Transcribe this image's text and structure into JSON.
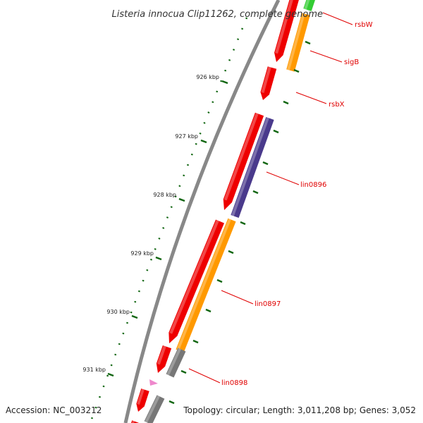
{
  "title": "Listeria innocua Clip11262, complete genome",
  "accession": "Accession: NC_003212",
  "topology": "Topology: circular; Length: 3,011,208 bp; Genes: 3,052",
  "scale_labels": [
    "926 kbp",
    "927 kbp",
    "928 kbp",
    "929 kbp",
    "930 kbp",
    "931 kbp"
  ],
  "gene_labels": [
    "rsbW",
    "sigB",
    "rsbX",
    "lin0896",
    "lin0897",
    "lin0898"
  ],
  "colors": {
    "gene_red": "#ee0000",
    "orange": "#ff9900",
    "purple": "#4a3a8c",
    "green": "#33cc33",
    "gray": "#777777",
    "pink": "#ee88cc",
    "backbone": "#888888",
    "tick_green": "#116611",
    "label_red": "#e00000"
  }
}
